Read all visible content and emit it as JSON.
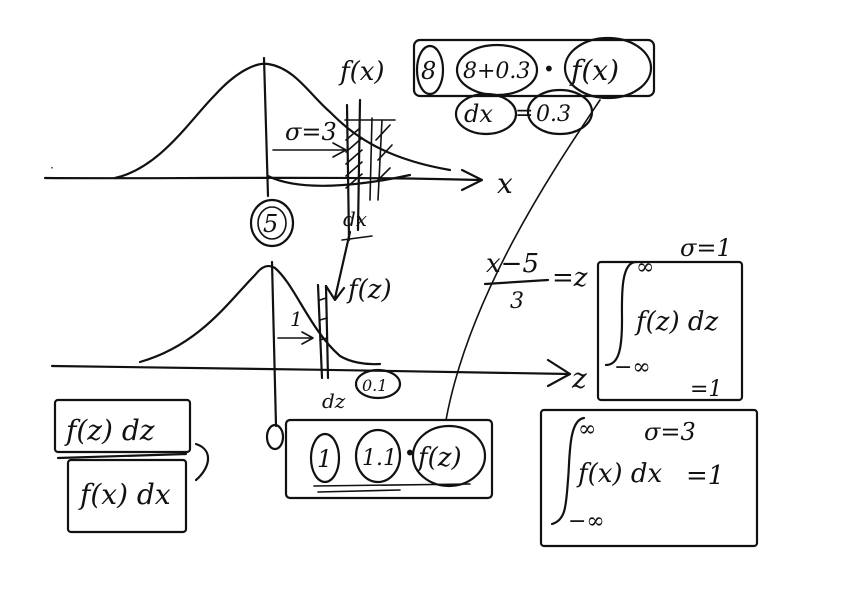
{
  "labels": {
    "fx_top": "f(x)",
    "sigma3_top": "σ=3",
    "x_axis": "x",
    "dx_small": "dx",
    "mean5": "5",
    "fz_mid": "f(z)",
    "one_mid": "1",
    "z_axis": "z",
    "dz_small": "dz",
    "dz_val": "0.1",
    "zero": "0",
    "conv_num": "x−5",
    "conv_den": "3",
    "conv_eq": "=z",
    "frac_num": "f(z) dz",
    "frac_den": "f(x) dx"
  },
  "top_calc": {
    "a": "8",
    "b": "8+0.3",
    "dot": "•",
    "fx": "f(x)",
    "dx": "dx",
    "eq": "=",
    "dxval": "0.3"
  },
  "bottom_calc": {
    "a": "1",
    "b": "1.1",
    "dot": "•",
    "fz": "f(z)"
  },
  "box_z": {
    "upper": "∞",
    "lower": "−∞",
    "integrand": "f(z) dz",
    "sigma": "σ=1",
    "result": "=1"
  },
  "box_x": {
    "upper": "∞",
    "lower": "−∞",
    "integrand": "f(x) dx",
    "sigma": "σ=3",
    "result": "=1"
  }
}
